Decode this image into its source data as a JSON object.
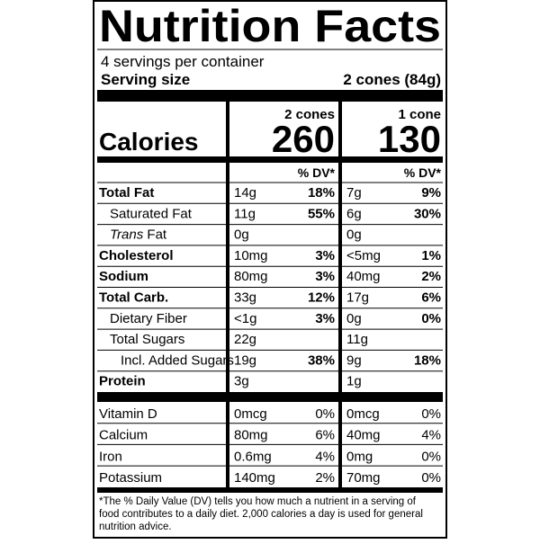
{
  "header": {
    "title": "Nutrition Facts",
    "servings": "4 servings per container",
    "serving_size_label": "Serving size",
    "serving_size_value": "2 cones (84g)"
  },
  "calories_label": "Calories",
  "columns": [
    {
      "label": "2 cones",
      "calories": "260",
      "dv_header": "% DV*"
    },
    {
      "label": "1 cone",
      "calories": "130",
      "dv_header": "% DV*"
    }
  ],
  "nutrients": [
    {
      "name": "Total Fat",
      "bold": true,
      "indent": 0,
      "cells": [
        [
          "14g",
          "18%"
        ],
        [
          "7g",
          "9%"
        ]
      ]
    },
    {
      "name": "Saturated Fat",
      "bold": false,
      "indent": 1,
      "cells": [
        [
          "11g",
          "55%"
        ],
        [
          "6g",
          "30%"
        ]
      ]
    },
    {
      "name_italic": "Trans",
      "name": "Fat",
      "bold": false,
      "indent": 1,
      "cells": [
        [
          "0g"
        ],
        [
          "0g"
        ]
      ]
    },
    {
      "name": "Cholesterol",
      "bold": true,
      "indent": 0,
      "cells": [
        [
          "10mg",
          "3%"
        ],
        [
          "<5mg",
          "1%"
        ]
      ]
    },
    {
      "name": "Sodium",
      "bold": true,
      "indent": 0,
      "cells": [
        [
          "80mg",
          "3%"
        ],
        [
          "40mg",
          "2%"
        ]
      ]
    },
    {
      "name": "Total Carb.",
      "bold": true,
      "indent": 0,
      "cells": [
        [
          "33g",
          "12%"
        ],
        [
          "17g",
          "6%"
        ]
      ]
    },
    {
      "name": "Dietary Fiber",
      "bold": false,
      "indent": 1,
      "cells": [
        [
          "<1g",
          "3%"
        ],
        [
          "0g",
          "0%"
        ]
      ]
    },
    {
      "name": "Total Sugars",
      "bold": false,
      "indent": 1,
      "cells": [
        [
          "22g"
        ],
        [
          "11g"
        ]
      ]
    },
    {
      "name": "Incl. Added Sugars",
      "bold": false,
      "indent": 2,
      "cells": [
        [
          "19g",
          "38%"
        ],
        [
          "9g",
          "18%"
        ]
      ]
    },
    {
      "name": "Protein",
      "bold": true,
      "indent": 0,
      "cells": [
        [
          "3g"
        ],
        [
          "1g"
        ]
      ]
    }
  ],
  "vitamins": [
    {
      "name": "Vitamin D",
      "cells": [
        [
          "0mcg",
          "0%"
        ],
        [
          "0mcg",
          "0%"
        ]
      ]
    },
    {
      "name": "Calcium",
      "cells": [
        [
          "80mg",
          "6%"
        ],
        [
          "40mg",
          "4%"
        ]
      ]
    },
    {
      "name": "Iron",
      "cells": [
        [
          "0.6mg",
          "4%"
        ],
        [
          "0mg",
          "0%"
        ]
      ]
    },
    {
      "name": "Potassium",
      "cells": [
        [
          "140mg",
          "2%"
        ],
        [
          "70mg",
          "0%"
        ]
      ]
    }
  ],
  "footnote": [
    "*The % Daily Value (DV) tells you how much a nutrient in a serving of",
    "food contributes to a daily diet. 2,000 calories a day is used for general",
    "nutrition advice."
  ]
}
